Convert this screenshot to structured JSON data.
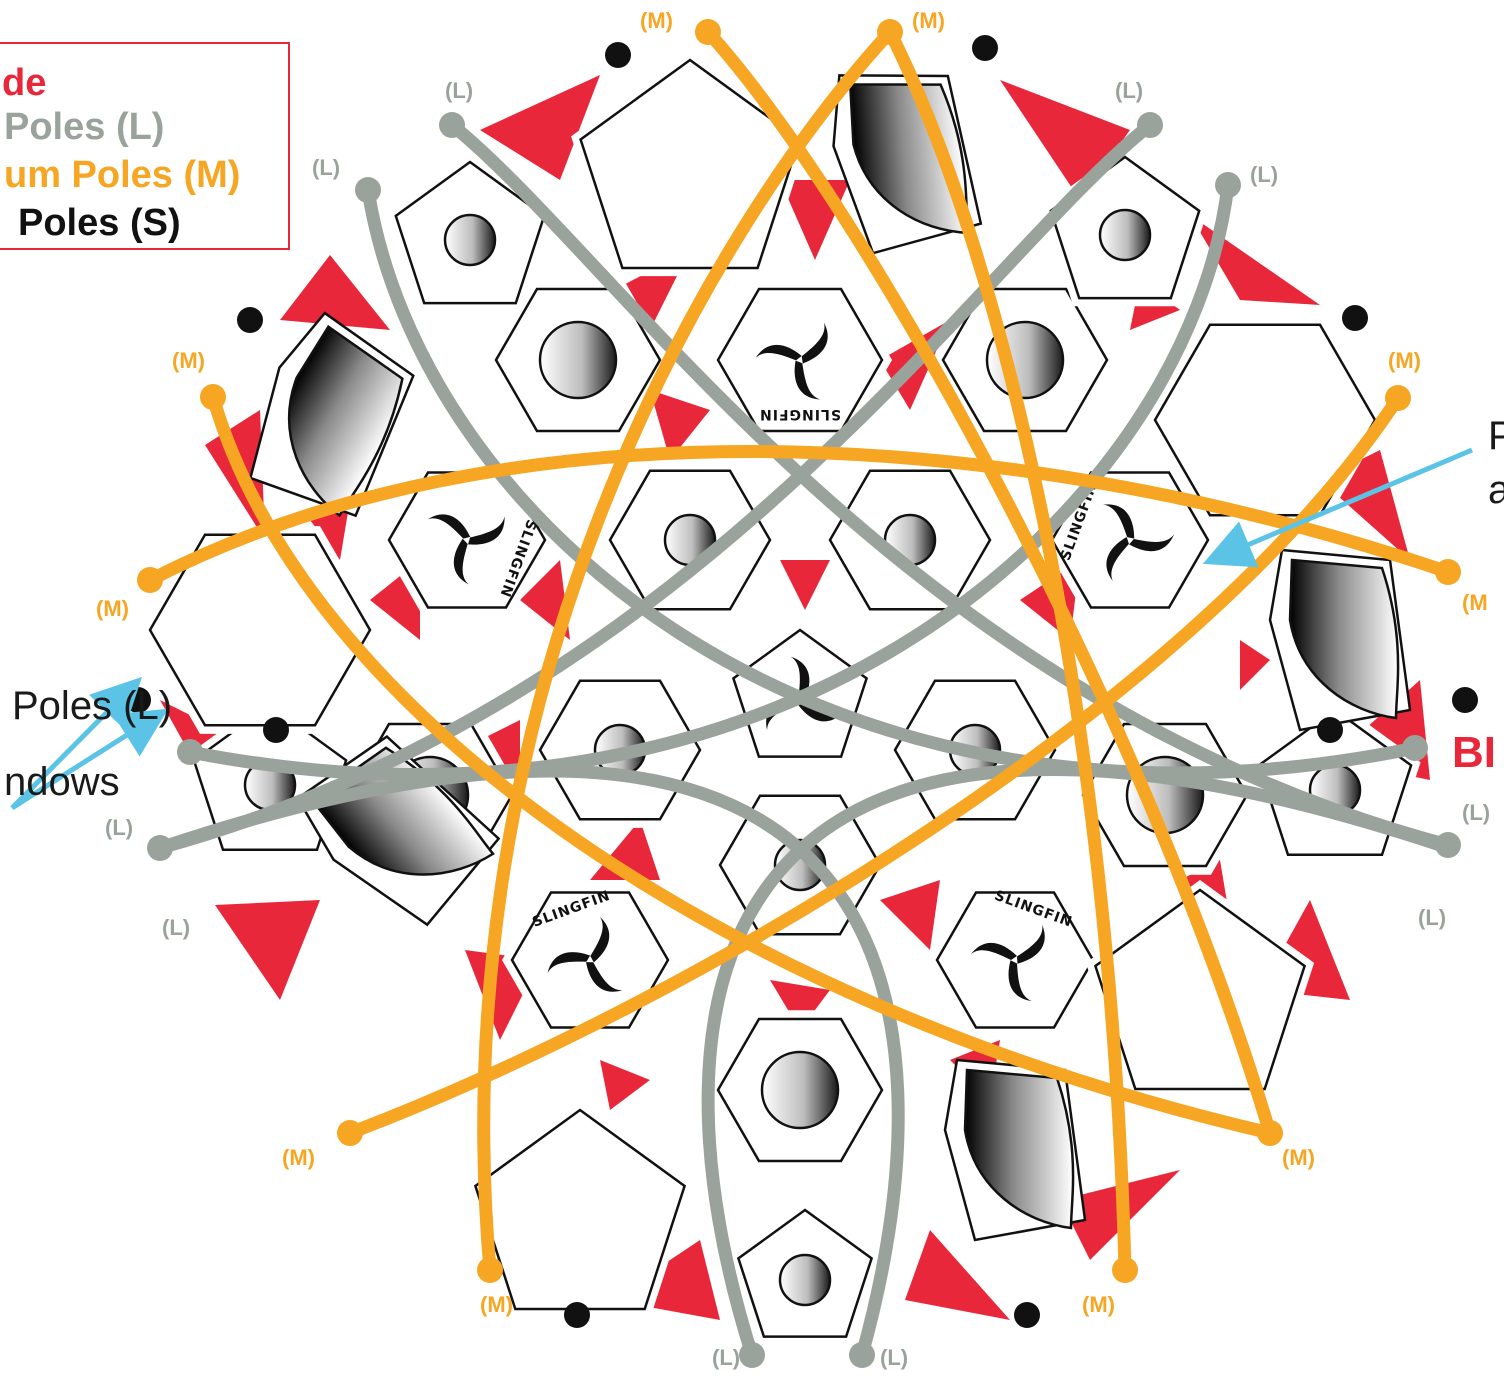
{
  "legend": {
    "items": [
      {
        "text": "de",
        "color": "#e8283a"
      },
      {
        "text": "Poles (L)",
        "color": "#9aa39b"
      },
      {
        "text": "um Poles (M)",
        "color": "#f6a623"
      },
      {
        "text": "Poles (S)",
        "color": "#111111"
      }
    ]
  },
  "pole_labels": {
    "large": "(L)",
    "medium": "(M)",
    "medium_cut": "(M"
  },
  "callouts": {
    "left_poles": "Poles (L)",
    "left_windows": "ndows",
    "right_top_1": "P",
    "right_top_2": "a",
    "right_bottom": "BI"
  },
  "logo": {
    "text": "SLINGFIN"
  },
  "colors": {
    "fly": "#e8283a",
    "large_pole": "#9aa39b",
    "medium_pole": "#f6a623",
    "small_pole": "#111111",
    "arrow": "#5bc4e6"
  }
}
